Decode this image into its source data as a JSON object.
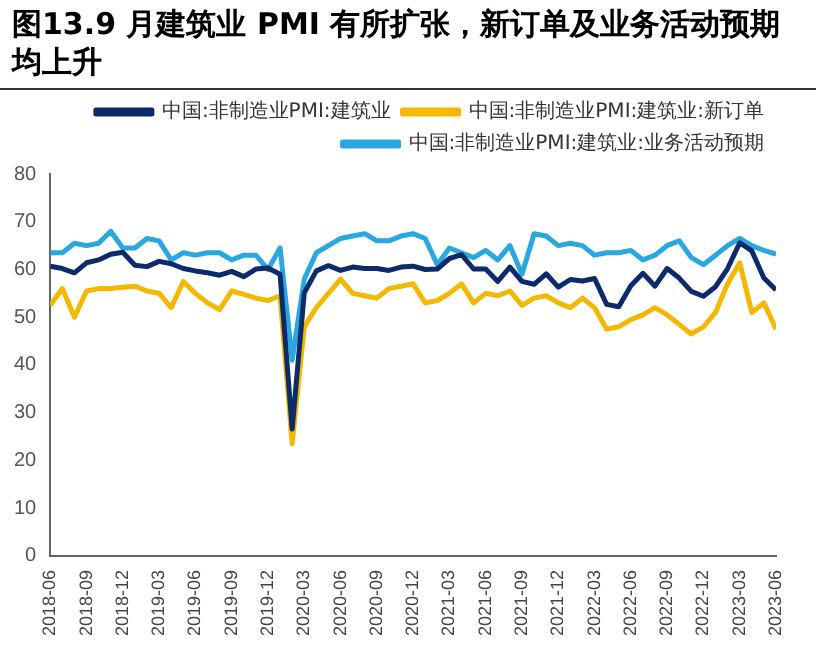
{
  "chart_data": {
    "type": "line",
    "title": "图13.9 月建筑业 PMI 有所扩张，新订单及业务活动预期均上升",
    "x": [
      "2018-06",
      "2018-07",
      "2018-08",
      "2018-09",
      "2018-10",
      "2018-11",
      "2018-12",
      "2019-01",
      "2019-02",
      "2019-03",
      "2019-04",
      "2019-05",
      "2019-06",
      "2019-07",
      "2019-08",
      "2019-09",
      "2019-10",
      "2019-11",
      "2019-12",
      "2020-01",
      "2020-02",
      "2020-03",
      "2020-04",
      "2020-05",
      "2020-06",
      "2020-07",
      "2020-08",
      "2020-09",
      "2020-10",
      "2020-11",
      "2020-12",
      "2021-01",
      "2021-02",
      "2021-03",
      "2021-04",
      "2021-05",
      "2021-06",
      "2021-07",
      "2021-08",
      "2021-09",
      "2021-10",
      "2021-11",
      "2021-12",
      "2022-01",
      "2022-02",
      "2022-03",
      "2022-04",
      "2022-05",
      "2022-06",
      "2022-07",
      "2022-08",
      "2022-09",
      "2022-10",
      "2022-11",
      "2022-12",
      "2023-01",
      "2023-02",
      "2023-03",
      "2023-04",
      "2023-05",
      "2023-06"
    ],
    "xticks": [
      "2018-06",
      "2018-09",
      "2018-12",
      "2019-03",
      "2019-06",
      "2019-09",
      "2019-12",
      "2020-03",
      "2020-06",
      "2020-09",
      "2020-12",
      "2021-03",
      "2021-06",
      "2021-09",
      "2021-12",
      "2022-03",
      "2022-06",
      "2022-09",
      "2022-12",
      "2023-03",
      "2023-06"
    ],
    "xlim": [
      "2018-06",
      "2023-06"
    ],
    "ylim": [
      0,
      80
    ],
    "yticks": [
      0,
      10,
      20,
      30,
      40,
      50,
      60,
      70,
      80
    ],
    "grid": false,
    "legend": "top",
    "marker": "none",
    "line_style": "solid",
    "series": [
      {
        "name": "中国:非制造业PMI:建筑业",
        "color": "#0d2a6b",
        "values": [
          60.7,
          60.2,
          59.3,
          61.4,
          62.0,
          63.2,
          63.6,
          60.9,
          60.6,
          61.7,
          61.2,
          60.2,
          59.7,
          59.3,
          58.8,
          59.6,
          58.5,
          60.1,
          60.3,
          59.0,
          26.6,
          55.1,
          59.7,
          60.8,
          59.8,
          60.5,
          60.2,
          60.2,
          59.8,
          60.5,
          60.7,
          60.0,
          60.1,
          62.3,
          63.1,
          60.1,
          60.1,
          57.5,
          60.5,
          57.5,
          56.9,
          59.1,
          56.3,
          57.9,
          57.6,
          58.1,
          52.7,
          52.2,
          56.6,
          59.2,
          56.5,
          60.2,
          58.2,
          55.4,
          54.4,
          56.4,
          60.2,
          65.6,
          63.9,
          58.2,
          55.7
        ]
      },
      {
        "name": "中国:非制造业PMI:建筑业:新订单",
        "color": "#f5b800",
        "values": [
          52.5,
          56.0,
          50.0,
          55.5,
          56.0,
          56.0,
          56.3,
          56.5,
          55.5,
          55.0,
          52.0,
          57.5,
          55.0,
          53.0,
          51.6,
          55.5,
          54.8,
          54.0,
          53.5,
          54.5,
          23.5,
          48.0,
          52.0,
          55.0,
          58.0,
          55.0,
          54.5,
          54.0,
          56.0,
          56.5,
          57.0,
          53.0,
          53.5,
          55.0,
          57.0,
          53.0,
          55.0,
          54.5,
          55.5,
          52.5,
          54.0,
          54.5,
          53.0,
          52.0,
          54.0,
          52.0,
          47.5,
          48.0,
          49.5,
          50.5,
          52.0,
          50.5,
          48.5,
          46.5,
          48.0,
          51.0,
          57.0,
          61.4,
          51.0,
          53.0,
          47.5
        ]
      },
      {
        "name": "中国:非制造业PMI:建筑业:业务活动预期",
        "color": "#29a8e0",
        "values": [
          63.5,
          63.5,
          65.5,
          65.0,
          65.5,
          68.0,
          64.5,
          64.5,
          66.5,
          66.0,
          62.0,
          63.5,
          63.0,
          63.5,
          63.5,
          62.0,
          63.0,
          63.0,
          60.0,
          64.5,
          41.0,
          58.0,
          63.5,
          65.0,
          66.5,
          67.0,
          67.5,
          66.0,
          66.0,
          67.0,
          67.5,
          66.5,
          61.0,
          64.5,
          63.5,
          62.5,
          64.0,
          62.0,
          65.0,
          59.0,
          67.5,
          67.0,
          65.0,
          65.5,
          65.0,
          63.0,
          63.5,
          63.5,
          64.0,
          62.0,
          63.0,
          65.0,
          66.0,
          62.5,
          61.0,
          63.0,
          65.0,
          66.5,
          65.0,
          64.0,
          63.2
        ]
      }
    ]
  }
}
